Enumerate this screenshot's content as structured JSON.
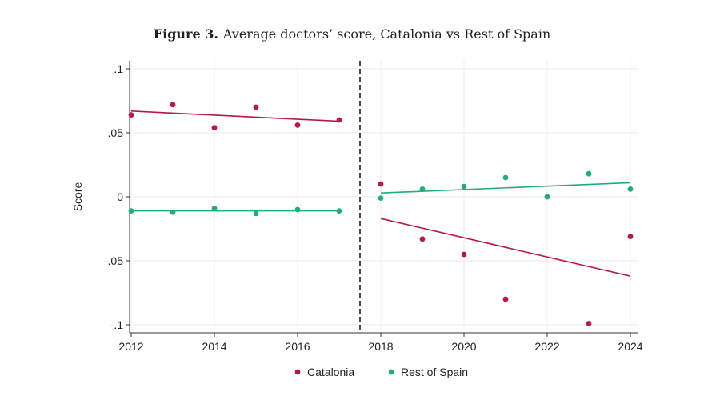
{
  "chart_data": {
    "type": "scatter",
    "title_bold": "Figure 3.",
    "title": "Average doctors’ score, Catalonia vs Rest of Spain",
    "xlabel": "",
    "ylabel": "Score",
    "xlim": [
      2012,
      2024
    ],
    "ylim": [
      -0.1,
      0.1
    ],
    "x_ticks": [
      2012,
      2014,
      2016,
      2018,
      2020,
      2022,
      2024
    ],
    "y_ticks": [
      {
        "value": 0.1,
        "label": ".1"
      },
      {
        "value": 0.05,
        "label": ".05"
      },
      {
        "value": 0,
        "label": "0"
      },
      {
        "value": -0.05,
        "label": "-.05"
      },
      {
        "value": -0.1,
        "label": "-.1"
      }
    ],
    "grid": true,
    "vertical_line": {
      "x": 2017.5,
      "style": "dashed"
    },
    "legend_position": "bottom",
    "series": [
      {
        "name": "Catalonia",
        "color": "#b5174f",
        "x": [
          2012,
          2013,
          2014,
          2015,
          2016,
          2017,
          2018,
          2019,
          2020,
          2021,
          2023,
          2024
        ],
        "y": [
          0.064,
          0.072,
          0.054,
          0.07,
          0.056,
          0.06,
          0.01,
          -0.033,
          -0.045,
          -0.08,
          -0.099,
          -0.031
        ],
        "fit_lines": [
          {
            "x": [
              2012,
              2017
            ],
            "y": [
              0.067,
              0.059
            ]
          },
          {
            "x": [
              2018,
              2024
            ],
            "y": [
              -0.017,
              -0.062
            ]
          }
        ]
      },
      {
        "name": "Rest of Spain",
        "color": "#1fae7a",
        "x": [
          2012,
          2013,
          2014,
          2015,
          2016,
          2017,
          2018,
          2019,
          2020,
          2021,
          2022,
          2023,
          2024
        ],
        "y": [
          -0.011,
          -0.012,
          -0.009,
          -0.013,
          -0.01,
          -0.011,
          -0.001,
          0.006,
          0.008,
          0.015,
          0.0,
          0.018,
          0.006
        ],
        "fit_lines": [
          {
            "x": [
              2012,
              2017
            ],
            "y": [
              -0.011,
              -0.011
            ]
          },
          {
            "x": [
              2018,
              2024
            ],
            "y": [
              0.003,
              0.011
            ]
          }
        ]
      }
    ]
  }
}
